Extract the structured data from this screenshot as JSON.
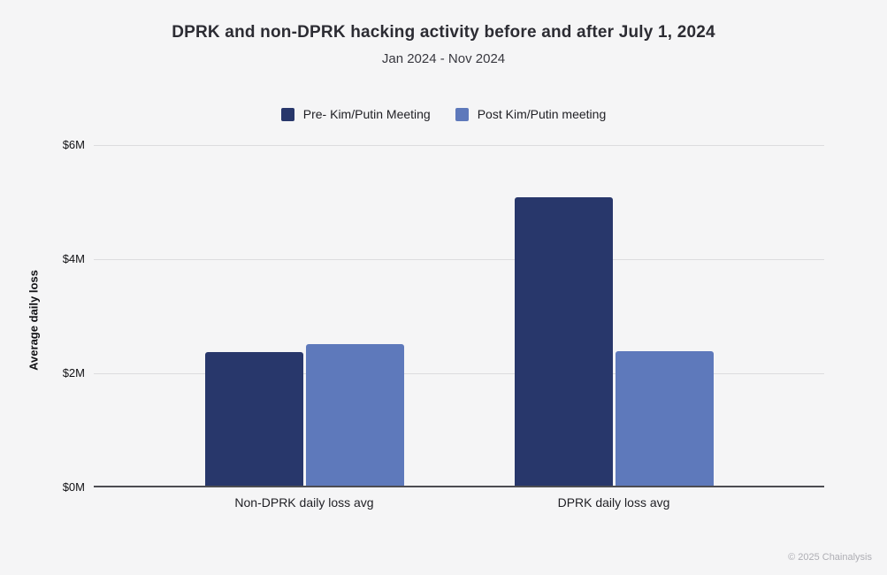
{
  "chart_data": {
    "type": "bar",
    "title": "DPRK and non-DPRK hacking activity before and after July 1, 2024",
    "subtitle": "Jan 2024 - Nov 2024",
    "categories": [
      "Non-DPRK daily loss avg",
      "DPRK daily loss avg"
    ],
    "series": [
      {
        "name": "Pre- Kim/Putin Meeting",
        "color": "#28376b",
        "values": [
          2.37,
          5.09
        ]
      },
      {
        "name": "Post Kim/Putin meeting",
        "color": "#5e79bb",
        "values": [
          2.51,
          2.39
        ]
      }
    ],
    "ylabel": "Average daily loss",
    "unit": "$M",
    "ylim": [
      0,
      6
    ],
    "yticks": [
      {
        "value": 0,
        "label": "$0M"
      },
      {
        "value": 2,
        "label": "$2M"
      },
      {
        "value": 4,
        "label": "$4M"
      },
      {
        "value": 6,
        "label": "$6M"
      }
    ],
    "grid": true,
    "legend_position": "top"
  },
  "colors": {
    "background": "#f5f5f6",
    "gridline": "#dcdcde",
    "axis_line": "#4d4d52",
    "title_text": "#2c2c33",
    "footer_text": "#aeaeb4"
  },
  "footer": {
    "copyright": "© 2025 Chainalysis"
  }
}
